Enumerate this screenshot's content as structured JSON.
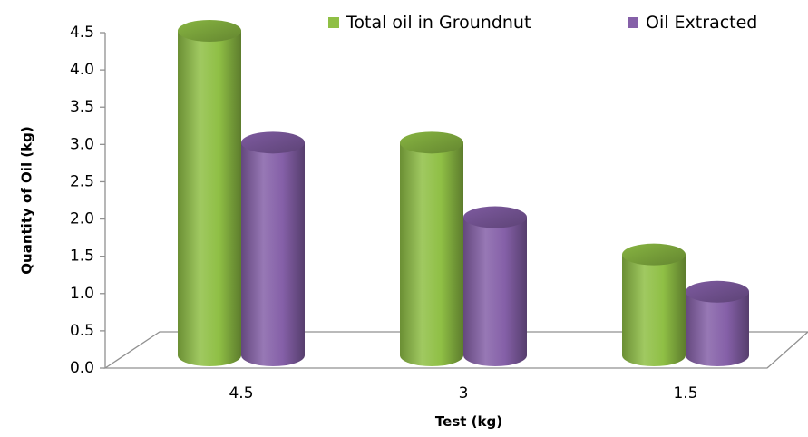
{
  "chart_data": {
    "type": "bar",
    "style": "3d-cylinder",
    "categories": [
      "4.5",
      "3",
      "1.5"
    ],
    "series": [
      {
        "name": "Total oil in Groundnut",
        "values": [
          4.5,
          3.0,
          1.5
        ],
        "color": "#8fbf45"
      },
      {
        "name": "Oil Extracted",
        "values": [
          3.0,
          2.0,
          1.0
        ],
        "color": "#8560a8"
      }
    ],
    "xlabel": "Test (kg)",
    "ylabel": "Quantity of Oil (kg)",
    "ylim": [
      0,
      4.5
    ],
    "yticks": [
      "0.0",
      "0.5",
      "1.0",
      "1.5",
      "2.0",
      "2.5",
      "3.0",
      "3.5",
      "4.0",
      "4.5"
    ],
    "legend_position": "top-right",
    "grid": false
  }
}
